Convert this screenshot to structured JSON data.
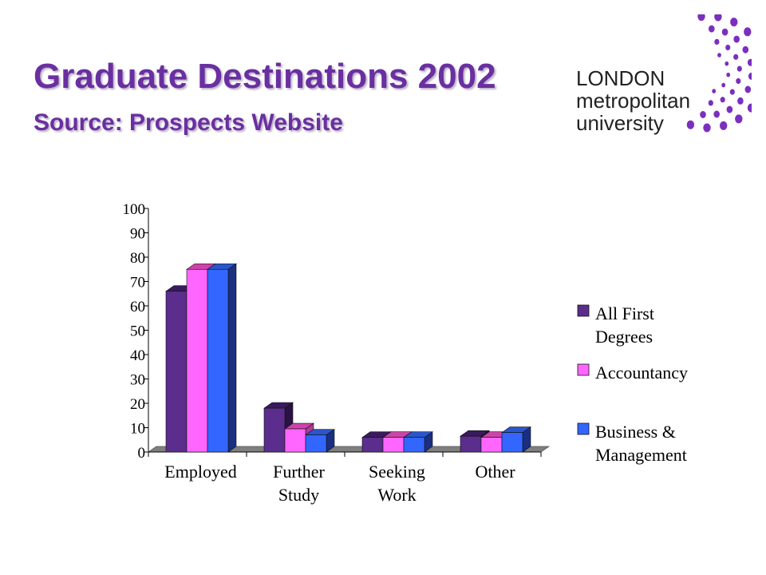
{
  "header": {
    "title": "Graduate Destinations 2002",
    "subtitle": "Source: Prospects Website"
  },
  "logo": {
    "line1": "LONDON",
    "line2": "metropolitan",
    "line3": "university",
    "dot_color": "#7b2fbe"
  },
  "colors": {
    "title": "#6a2fa0",
    "floor": "#7f7f7f"
  },
  "chart_data": {
    "type": "bar",
    "style": "3d-clustered-column",
    "categories": [
      [
        "Employed"
      ],
      [
        "Further",
        "Study"
      ],
      [
        "Seeking",
        "Work"
      ],
      [
        "Other"
      ]
    ],
    "series": [
      {
        "name": "All First Degrees",
        "legend_lines": [
          "All First",
          "Degrees"
        ],
        "color": "#5b2d8c",
        "top_color": "#3a1a5e",
        "side_color": "#2a1244",
        "values": [
          66,
          18,
          6,
          6.5
        ]
      },
      {
        "name": "Accountancy",
        "legend_lines": [
          "Accountancy"
        ],
        "color": "#ff66ff",
        "top_color": "#cc44aa",
        "side_color": "#b03a9a",
        "values": [
          75,
          9.5,
          6,
          6
        ]
      },
      {
        "name": "Business & Management",
        "legend_lines": [
          "Business &",
          "Management"
        ],
        "color": "#3366ff",
        "top_color": "#2a55cc",
        "side_color": "#1a2f80",
        "values": [
          75,
          7,
          6,
          8
        ]
      }
    ],
    "yticks": [
      0,
      10,
      20,
      30,
      40,
      50,
      60,
      70,
      80,
      90,
      100
    ],
    "ylim": [
      0,
      100
    ],
    "xlabel": "",
    "ylabel": "",
    "legend_position": "right",
    "grid": false
  }
}
